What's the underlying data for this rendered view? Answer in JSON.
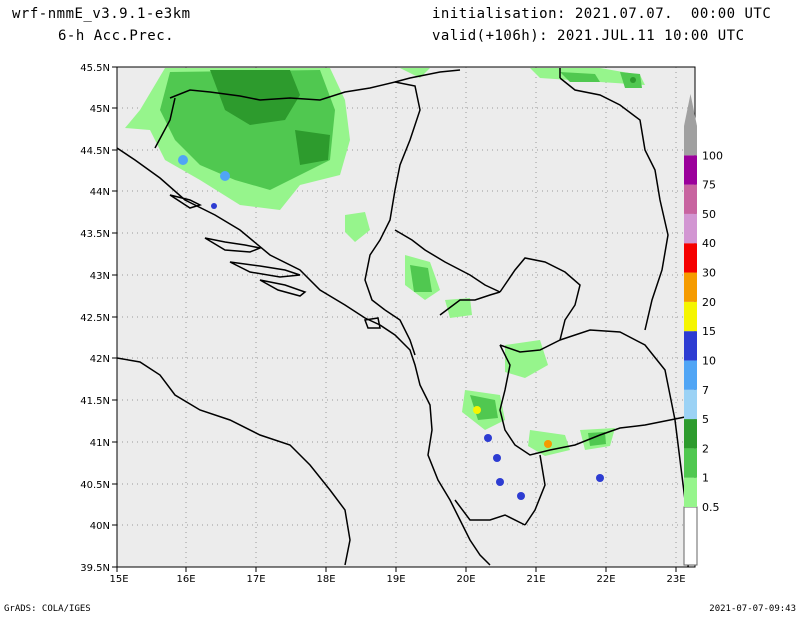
{
  "header": {
    "model": "wrf-nmmE_v3.9.1-e3km",
    "field": "6-h Acc.Prec.",
    "init_label": "initialisation: 2021.07.07.  00:00 UTC",
    "valid_label": "valid(+106h): 2021.JUL.11 10:00 UTC"
  },
  "footer": {
    "credit": "GrADS: COLA/IGES",
    "timestamp": "2021-07-07-09:43"
  },
  "axes": {
    "lat_labels": [
      "45.5N",
      "45N",
      "44.5N",
      "44N",
      "43.5N",
      "43N",
      "42.5N",
      "42N",
      "41.5N",
      "41N",
      "40.5N",
      "40N",
      "39.5N"
    ],
    "lon_labels": [
      "15E",
      "16E",
      "17E",
      "18E",
      "19E",
      "20E",
      "21E",
      "22E",
      "23E"
    ]
  },
  "colorbar": {
    "levels": [
      "0.5",
      "1",
      "2",
      "5",
      "7",
      "10",
      "15",
      "20",
      "30",
      "40",
      "50",
      "75",
      "100"
    ],
    "colors": [
      "#96f58c",
      "#50c850",
      "#2d9b2d",
      "#9bd2f5",
      "#50a5f5",
      "#2d3cd2",
      "#f5f500",
      "#f59b00",
      "#f50000",
      "#d296d2",
      "#c864a0",
      "#9b009b",
      "#a0a0a0"
    ]
  },
  "map": {
    "background": "#ececec",
    "grid": "dotted"
  }
}
